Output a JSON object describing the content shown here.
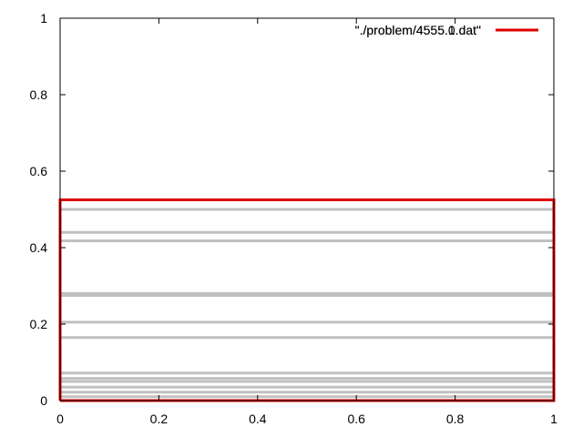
{
  "chart_data": {
    "type": "line",
    "xlim": [
      0,
      1
    ],
    "ylim": [
      0,
      1
    ],
    "x_ticks": [
      "0",
      "0.2",
      "0.4",
      "0.6",
      "0.8",
      "1"
    ],
    "y_ticks": [
      "0",
      "0.2",
      "0.4",
      "0.6",
      "0.8",
      "1"
    ],
    "x_tick_values": [
      0,
      0.2,
      0.4,
      0.6,
      0.8,
      1
    ],
    "y_tick_values": [
      0,
      0.2,
      0.4,
      0.6,
      0.8,
      1
    ],
    "grid": false,
    "legend_position": "top-right",
    "series": [
      {
        "name": "\"./problem/4555.1.dat\"",
        "color": "#dd0000",
        "x": [
          0,
          1,
          1,
          0,
          0
        ],
        "y": [
          0,
          0,
          0.525,
          0.525,
          0
        ]
      }
    ],
    "horizontal_lines": {
      "color": "#c0c0c0",
      "x_range": [
        0,
        1
      ],
      "y": [
        0.01,
        0.022,
        0.035,
        0.05,
        0.058,
        0.072,
        0.165,
        0.205,
        0.275,
        0.28,
        0.418,
        0.44,
        0.5
      ]
    },
    "legend_overlay_text": "\"./problem/4555.0.dat\""
  }
}
